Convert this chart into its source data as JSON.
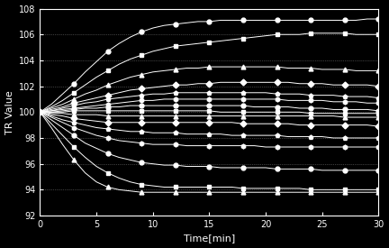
{
  "background_color": "#000000",
  "axes_color": "#ffffff",
  "grid_color": "#777777",
  "line_color": "#ffffff",
  "xlabel": "Time[min]",
  "ylabel": "TR Value",
  "xlim": [
    0,
    30
  ],
  "ylim": [
    92,
    108
  ],
  "xticks": [
    0,
    5,
    10,
    15,
    20,
    25,
    30
  ],
  "yticks": [
    92,
    94,
    96,
    98,
    100,
    102,
    104,
    106,
    108
  ],
  "x_dense": [
    0,
    1,
    2,
    3,
    4,
    5,
    6,
    7,
    8,
    9,
    10,
    11,
    12,
    13,
    14,
    15,
    16,
    17,
    18,
    19,
    20,
    21,
    22,
    23,
    24,
    25,
    26,
    27,
    28,
    29,
    30
  ],
  "series": [
    [
      100,
      100.6,
      101.4,
      102.2,
      103.1,
      103.9,
      104.7,
      105.3,
      105.8,
      106.2,
      106.5,
      106.7,
      106.8,
      106.9,
      107.0,
      107.0,
      107.1,
      107.1,
      107.1,
      107.1,
      107.1,
      107.1,
      107.1,
      107.1,
      107.1,
      107.1,
      107.1,
      107.1,
      107.1,
      107.2,
      107.2
    ],
    [
      100,
      100.4,
      100.9,
      101.5,
      102.1,
      102.7,
      103.2,
      103.7,
      104.1,
      104.4,
      104.7,
      104.9,
      105.1,
      105.2,
      105.3,
      105.4,
      105.5,
      105.6,
      105.7,
      105.8,
      105.9,
      106.0,
      106.0,
      106.0,
      106.1,
      106.1,
      106.1,
      106.1,
      106.0,
      106.0,
      106.0
    ],
    [
      100,
      100.3,
      100.6,
      101.0,
      101.4,
      101.7,
      102.1,
      102.4,
      102.7,
      102.9,
      103.1,
      103.2,
      103.3,
      103.4,
      103.4,
      103.5,
      103.5,
      103.5,
      103.5,
      103.5,
      103.5,
      103.5,
      103.4,
      103.4,
      103.4,
      103.3,
      103.3,
      103.3,
      103.2,
      103.2,
      103.2
    ],
    [
      100,
      100.2,
      100.4,
      100.7,
      100.9,
      101.1,
      101.3,
      101.5,
      101.7,
      101.8,
      101.9,
      102.0,
      102.1,
      102.1,
      102.2,
      102.2,
      102.3,
      102.3,
      102.3,
      102.3,
      102.3,
      102.3,
      102.3,
      102.2,
      102.2,
      102.2,
      102.1,
      102.1,
      102.1,
      102.1,
      102.0
    ],
    [
      100,
      100.1,
      100.3,
      100.5,
      100.7,
      100.8,
      101.0,
      101.1,
      101.2,
      101.3,
      101.4,
      101.4,
      101.5,
      101.5,
      101.5,
      101.5,
      101.5,
      101.5,
      101.5,
      101.5,
      101.5,
      101.4,
      101.4,
      101.4,
      101.3,
      101.3,
      101.3,
      101.2,
      101.2,
      101.2,
      101.1
    ],
    [
      100,
      100.1,
      100.2,
      100.3,
      100.4,
      100.5,
      100.6,
      100.7,
      100.8,
      100.9,
      100.9,
      101.0,
      101.0,
      101.0,
      101.0,
      101.0,
      101.0,
      101.0,
      101.0,
      101.0,
      101.0,
      101.0,
      100.9,
      100.9,
      100.9,
      100.9,
      100.8,
      100.8,
      100.8,
      100.7,
      100.7
    ],
    [
      100,
      100.0,
      100.1,
      100.2,
      100.3,
      100.3,
      100.4,
      100.4,
      100.5,
      100.5,
      100.5,
      100.5,
      100.5,
      100.5,
      100.5,
      100.5,
      100.5,
      100.5,
      100.5,
      100.4,
      100.4,
      100.4,
      100.4,
      100.3,
      100.3,
      100.3,
      100.2,
      100.2,
      100.2,
      100.2,
      100.1
    ],
    [
      100,
      100.0,
      100.0,
      100.1,
      100.1,
      100.1,
      100.1,
      100.1,
      100.1,
      100.1,
      100.1,
      100.1,
      100.1,
      100.1,
      100.1,
      100.1,
      100.0,
      100.0,
      100.0,
      100.0,
      100.0,
      100.0,
      100.0,
      100.0,
      99.9,
      99.9,
      99.9,
      99.9,
      99.9,
      99.9,
      99.9
    ],
    [
      100,
      99.9,
      99.9,
      99.8,
      99.8,
      99.8,
      99.7,
      99.7,
      99.7,
      99.7,
      99.7,
      99.7,
      99.7,
      99.7,
      99.7,
      99.7,
      99.7,
      99.7,
      99.7,
      99.7,
      99.7,
      99.7,
      99.7,
      99.7,
      99.7,
      99.7,
      99.7,
      99.6,
      99.6,
      99.6,
      99.6
    ],
    [
      100,
      99.8,
      99.7,
      99.5,
      99.4,
      99.3,
      99.2,
      99.2,
      99.2,
      99.2,
      99.2,
      99.2,
      99.2,
      99.2,
      99.2,
      99.2,
      99.2,
      99.2,
      99.1,
      99.1,
      99.1,
      99.1,
      99.1,
      99.0,
      99.0,
      99.0,
      99.0,
      99.0,
      99.0,
      99.0,
      98.9
    ],
    [
      100,
      99.7,
      99.4,
      99.2,
      99.0,
      98.8,
      98.7,
      98.6,
      98.5,
      98.5,
      98.4,
      98.4,
      98.4,
      98.3,
      98.3,
      98.3,
      98.3,
      98.2,
      98.2,
      98.2,
      98.2,
      98.2,
      98.1,
      98.1,
      98.1,
      98.1,
      98.0,
      98.0,
      98.0,
      98.0,
      98.0
    ],
    [
      100,
      99.6,
      99.2,
      98.8,
      98.5,
      98.2,
      98.0,
      97.8,
      97.7,
      97.6,
      97.5,
      97.5,
      97.5,
      97.4,
      97.4,
      97.4,
      97.4,
      97.4,
      97.4,
      97.4,
      97.3,
      97.3,
      97.3,
      97.3,
      97.3,
      97.3,
      97.3,
      97.3,
      97.3,
      97.3,
      97.3
    ],
    [
      100,
      99.4,
      98.8,
      98.2,
      97.6,
      97.2,
      96.8,
      96.5,
      96.3,
      96.1,
      96.0,
      95.9,
      95.9,
      95.8,
      95.8,
      95.8,
      95.7,
      95.7,
      95.7,
      95.7,
      95.7,
      95.6,
      95.6,
      95.6,
      95.6,
      95.5,
      95.5,
      95.5,
      95.5,
      95.5,
      95.5
    ],
    [
      100,
      99.1,
      98.2,
      97.3,
      96.5,
      95.8,
      95.3,
      94.9,
      94.6,
      94.4,
      94.3,
      94.2,
      94.2,
      94.2,
      94.2,
      94.2,
      94.2,
      94.2,
      94.1,
      94.1,
      94.1,
      94.1,
      94.1,
      94.1,
      94.0,
      94.0,
      94.0,
      94.0,
      94.0,
      94.0,
      94.0
    ],
    [
      100,
      98.8,
      97.5,
      96.3,
      95.3,
      94.6,
      94.2,
      94.0,
      93.9,
      93.8,
      93.8,
      93.8,
      93.8,
      93.8,
      93.8,
      93.8,
      93.8,
      93.8,
      93.8,
      93.8,
      93.8,
      93.8,
      93.8,
      93.8,
      93.8,
      93.8,
      93.8,
      93.8,
      93.8,
      93.8,
      93.8
    ]
  ],
  "marker_x": [
    0,
    3,
    6,
    9,
    12,
    15,
    18,
    21,
    24,
    27,
    30
  ],
  "markers": [
    "o",
    "s",
    "^",
    "D",
    "p",
    "h",
    "o",
    "s",
    "^",
    "D",
    "p",
    "h",
    "o",
    "s",
    "^"
  ],
  "marker_size": 3.5
}
